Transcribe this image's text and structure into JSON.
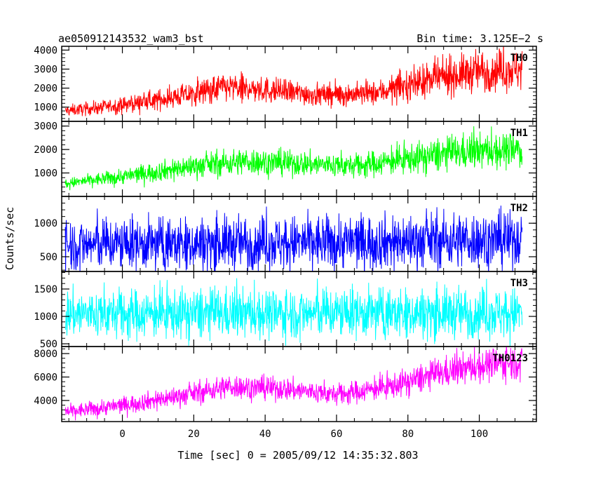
{
  "chart_data": {
    "type": "line",
    "title_left": "ae050912143532_wam3_bst",
    "title_right": "Bin time: 3.125E−2 s",
    "xlabel": "Time [sec] 0 = 2005/09/12 14:35:32.803",
    "ylabel": "Counts/sec",
    "xlim": [
      -17,
      116
    ],
    "x_range_data": [
      -16,
      112
    ],
    "x_ticks": [
      0,
      20,
      40,
      60,
      80,
      100
    ],
    "grid": false,
    "panels": [
      {
        "name": "TH0",
        "color": "#ff0000",
        "ylim": [
          250,
          4200
        ],
        "y_ticks": [
          1000,
          2000,
          3000,
          4000
        ],
        "trend": [
          [
            -16,
            800
          ],
          [
            0,
            1100
          ],
          [
            20,
            1700
          ],
          [
            28,
            2050
          ],
          [
            40,
            1900
          ],
          [
            55,
            1650
          ],
          [
            70,
            1700
          ],
          [
            85,
            2400
          ],
          [
            100,
            2900
          ],
          [
            112,
            3000
          ]
        ],
        "spread": 0.33
      },
      {
        "name": "TH1",
        "color": "#00ff00",
        "ylim": [
          0,
          3200
        ],
        "y_ticks": [
          1000,
          2000,
          3000
        ],
        "trend": [
          [
            -16,
            550
          ],
          [
            0,
            850
          ],
          [
            20,
            1300
          ],
          [
            35,
            1500
          ],
          [
            50,
            1400
          ],
          [
            65,
            1300
          ],
          [
            80,
            1600
          ],
          [
            95,
            1900
          ],
          [
            112,
            2000
          ]
        ],
        "spread": 0.35
      },
      {
        "name": "TH2",
        "color": "#0000ff",
        "ylim": [
          280,
          1400
        ],
        "y_ticks": [
          500,
          1000
        ],
        "trend": [
          [
            -16,
            680
          ],
          [
            20,
            700
          ],
          [
            60,
            720
          ],
          [
            112,
            760
          ]
        ],
        "spread": 0.5
      },
      {
        "name": "TH3",
        "color": "#00ffff",
        "ylim": [
          450,
          1820
        ],
        "y_ticks": [
          500,
          1000,
          1500
        ],
        "trend": [
          [
            -16,
            1050
          ],
          [
            50,
            1060
          ],
          [
            112,
            1070
          ]
        ],
        "spread": 0.38
      },
      {
        "name": "TH0123",
        "color": "#ff00ff",
        "ylim": [
          2200,
          8600
        ],
        "y_ticks": [
          4000,
          6000,
          8000
        ],
        "trend": [
          [
            -16,
            3000
          ],
          [
            0,
            3600
          ],
          [
            20,
            4600
          ],
          [
            30,
            5200
          ],
          [
            45,
            5000
          ],
          [
            60,
            4500
          ],
          [
            75,
            5200
          ],
          [
            90,
            6400
          ],
          [
            105,
            7200
          ],
          [
            112,
            7300
          ]
        ],
        "spread": 0.18
      }
    ]
  }
}
